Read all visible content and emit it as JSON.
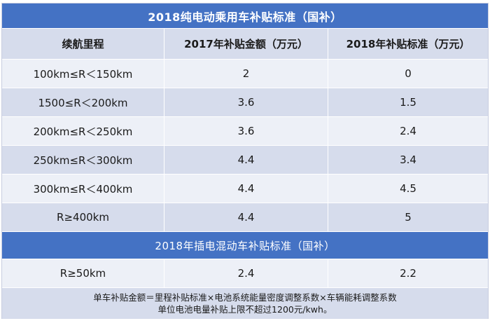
{
  "title": "2018纯电动乘用车补贴标准（国补）",
  "headers": [
    "续航里程",
    "2017年补贴金额（万元）",
    "2018年补贴标准（万元）"
  ],
  "ev_rows": [
    [
      "100km≤R＜150km",
      "2",
      "0"
    ],
    [
      "1500≤R＜200km",
      "3.6",
      "1.5"
    ],
    [
      "200km≤R＜250km",
      "3.6",
      "2.4"
    ],
    [
      "250km≤R＜300km",
      "4.4",
      "3.4"
    ],
    [
      "300km≤R＜400km",
      "4.4",
      "4.5"
    ],
    [
      "R≥400km",
      "4.4",
      "5"
    ]
  ],
  "phev_title": "2018年插电混动车补贴标准（国补）",
  "phev_row": [
    "R≥50km",
    "2.4",
    "2.2"
  ],
  "notes": [
    "单车补贴金额＝里程补贴标准×电池系统能量密度调整系数×车辆能耗调整系数",
    "单位电池电量补贴上限不超过1200元/kwh。"
  ]
}
